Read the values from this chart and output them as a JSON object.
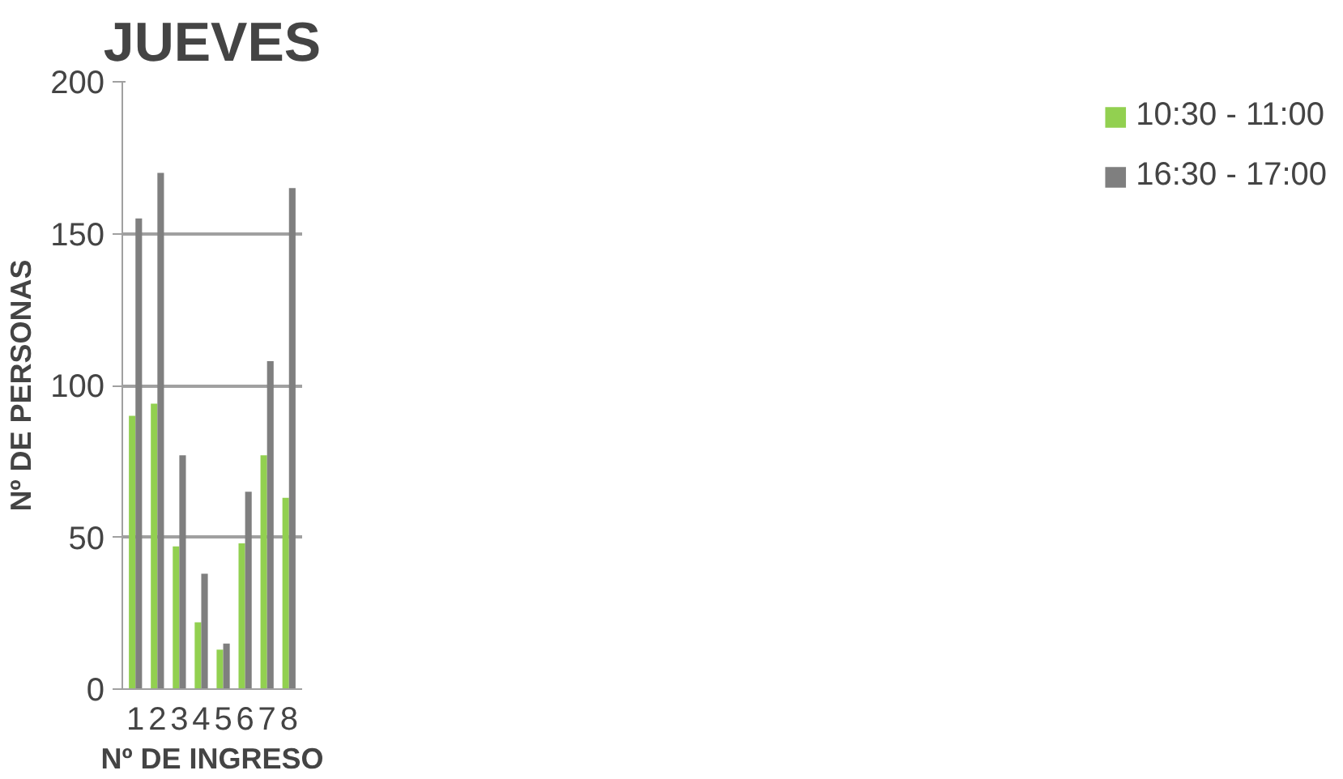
{
  "chart_data": {
    "type": "bar",
    "title": "JUEVES",
    "xlabel": "Nº DE INGRESO",
    "ylabel": "Nº DE PERSONAS",
    "categories": [
      "1",
      "2",
      "3",
      "4",
      "5",
      "6",
      "7",
      "8"
    ],
    "series": [
      {
        "name": "10:30 - 11:00",
        "color": "#92d050",
        "values": [
          90,
          94,
          47,
          22,
          13,
          48,
          77,
          63
        ]
      },
      {
        "name": "16:30 - 17:00",
        "color": "#7f7f7f",
        "values": [
          155,
          170,
          77,
          38,
          15,
          65,
          108,
          165
        ]
      }
    ],
    "ylim": [
      0,
      200
    ],
    "yticks": [
      0,
      50,
      100,
      150,
      200
    ],
    "grid": "y",
    "legend": "right"
  }
}
